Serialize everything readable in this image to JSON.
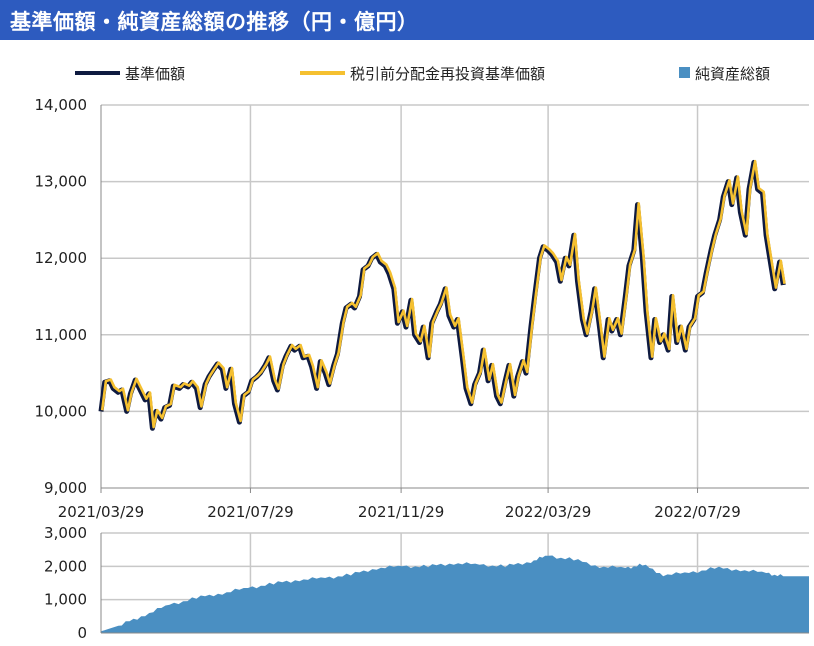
{
  "title": "基準価額・純資産総額の推移（円・億円）",
  "colors": {
    "header_bg": "#2d5bbf",
    "nav_line": "#0e1a40",
    "reinvested_line": "#f5c030",
    "net_assets_area": "#4a8fc2",
    "grid": "#c8c8c8",
    "axis": "#888888"
  },
  "chart_data": [
    {
      "type": "line",
      "legend": [
        {
          "name": "基準価額",
          "style": "line",
          "color": "#0e1a40"
        },
        {
          "name": "税引前分配金再投資基準価額",
          "style": "line",
          "color": "#f5c030"
        },
        {
          "name": "純資産総額",
          "style": "square",
          "color": "#4a8fc2"
        }
      ],
      "ylim": [
        9000,
        14000
      ],
      "yticks": [
        "9,000",
        "10,000",
        "11,000",
        "12,000",
        "13,000",
        "14,000"
      ],
      "ytick_values": [
        9000,
        10000,
        11000,
        12000,
        13000,
        14000
      ],
      "xlim": [
        "2021/03/29",
        "2022/10/28"
      ],
      "xticks": [
        "2021/03/29",
        "2021/07/29",
        "2021/11/29",
        "2022/03/29",
        "2022/07/29"
      ],
      "grid": true,
      "series": [
        {
          "name": "基準価額",
          "points": [
            [
              "2021/03/29",
              10000
            ],
            [
              "2021/04/01",
              10380
            ],
            [
              "2021/04/05",
              10400
            ],
            [
              "2021/04/08",
              10300
            ],
            [
              "2021/04/12",
              10250
            ],
            [
              "2021/04/15",
              10280
            ],
            [
              "2021/04/19",
              10000
            ],
            [
              "2021/04/22",
              10230
            ],
            [
              "2021/04/26",
              10410
            ],
            [
              "2021/04/30",
              10280
            ],
            [
              "2021/05/04",
              10150
            ],
            [
              "2021/05/07",
              10230
            ],
            [
              "2021/05/10",
              9780
            ],
            [
              "2021/05/13",
              10000
            ],
            [
              "2021/05/17",
              9900
            ],
            [
              "2021/05/20",
              10050
            ],
            [
              "2021/05/24",
              10080
            ],
            [
              "2021/05/27",
              10330
            ],
            [
              "2021/06/01",
              10300
            ],
            [
              "2021/06/04",
              10350
            ],
            [
              "2021/06/08",
              10320
            ],
            [
              "2021/06/11",
              10380
            ],
            [
              "2021/06/15",
              10300
            ],
            [
              "2021/06/18",
              10050
            ],
            [
              "2021/06/22",
              10350
            ],
            [
              "2021/06/25",
              10450
            ],
            [
              "2021/06/29",
              10550
            ],
            [
              "2021/07/02",
              10620
            ],
            [
              "2021/07/06",
              10550
            ],
            [
              "2021/07/09",
              10300
            ],
            [
              "2021/07/13",
              10550
            ],
            [
              "2021/07/16",
              10100
            ],
            [
              "2021/07/20",
              9860
            ],
            [
              "2021/07/23",
              10200
            ],
            [
              "2021/07/27",
              10250
            ],
            [
              "2021/07/30",
              10400
            ],
            [
              "2021/08/03",
              10450
            ],
            [
              "2021/08/06",
              10500
            ],
            [
              "2021/08/10",
              10600
            ],
            [
              "2021/08/13",
              10700
            ],
            [
              "2021/08/17",
              10400
            ],
            [
              "2021/08/20",
              10280
            ],
            [
              "2021/08/24",
              10600
            ],
            [
              "2021/08/27",
              10720
            ],
            [
              "2021/08/31",
              10850
            ],
            [
              "2021/09/03",
              10800
            ],
            [
              "2021/09/07",
              10850
            ],
            [
              "2021/09/10",
              10700
            ],
            [
              "2021/09/14",
              10720
            ],
            [
              "2021/09/17",
              10580
            ],
            [
              "2021/09/21",
              10300
            ],
            [
              "2021/09/24",
              10650
            ],
            [
              "2021/09/28",
              10500
            ],
            [
              "2021/10/01",
              10350
            ],
            [
              "2021/10/05",
              10600
            ],
            [
              "2021/10/08",
              10750
            ],
            [
              "2021/10/12",
              11150
            ],
            [
              "2021/10/15",
              11350
            ],
            [
              "2021/10/19",
              11400
            ],
            [
              "2021/10/22",
              11350
            ],
            [
              "2021/10/26",
              11500
            ],
            [
              "2021/10/29",
              11850
            ],
            [
              "2021/11/02",
              11900
            ],
            [
              "2021/11/05",
              12000
            ],
            [
              "2021/11/09",
              12050
            ],
            [
              "2021/11/12",
              11950
            ],
            [
              "2021/11/16",
              11900
            ],
            [
              "2021/11/19",
              11800
            ],
            [
              "2021/11/23",
              11600
            ],
            [
              "2021/11/26",
              11150
            ],
            [
              "2021/11/30",
              11300
            ],
            [
              "2021/12/03",
              11100
            ],
            [
              "2021/12/07",
              11450
            ],
            [
              "2021/12/10",
              11000
            ],
            [
              "2021/12/14",
              10900
            ],
            [
              "2021/12/17",
              11100
            ],
            [
              "2021/12/21",
              10700
            ],
            [
              "2021/12/24",
              11150
            ],
            [
              "2021/12/28",
              11300
            ],
            [
              "2021/12/31",
              11400
            ],
            [
              "2022/01/04",
              11600
            ],
            [
              "2022/01/07",
              11250
            ],
            [
              "2022/01/11",
              11100
            ],
            [
              "2022/01/14",
              11200
            ],
            [
              "2022/01/18",
              10700
            ],
            [
              "2022/01/21",
              10300
            ],
            [
              "2022/01/25",
              10100
            ],
            [
              "2022/01/28",
              10350
            ],
            [
              "2022/02/01",
              10500
            ],
            [
              "2022/02/04",
              10800
            ],
            [
              "2022/02/08",
              10400
            ],
            [
              "2022/02/11",
              10600
            ],
            [
              "2022/02/15",
              10200
            ],
            [
              "2022/02/18",
              10100
            ],
            [
              "2022/02/22",
              10400
            ],
            [
              "2022/02/25",
              10600
            ],
            [
              "2022/03/01",
              10200
            ],
            [
              "2022/03/04",
              10450
            ],
            [
              "2022/03/08",
              10650
            ],
            [
              "2022/03/11",
              10500
            ],
            [
              "2022/03/15",
              11100
            ],
            [
              "2022/03/18",
              11500
            ],
            [
              "2022/03/22",
              12000
            ],
            [
              "2022/03/25",
              12150
            ],
            [
              "2022/03/29",
              12100
            ],
            [
              "2022/04/01",
              12050
            ],
            [
              "2022/04/05",
              11950
            ],
            [
              "2022/04/08",
              11700
            ],
            [
              "2022/04/12",
              12000
            ],
            [
              "2022/04/15",
              11900
            ],
            [
              "2022/04/19",
              12300
            ],
            [
              "2022/04/22",
              11700
            ],
            [
              "2022/04/26",
              11200
            ],
            [
              "2022/04/29",
              11000
            ],
            [
              "2022/05/03",
              11300
            ],
            [
              "2022/05/06",
              11600
            ],
            [
              "2022/05/10",
              11100
            ],
            [
              "2022/05/13",
              10700
            ],
            [
              "2022/05/17",
              11200
            ],
            [
              "2022/05/20",
              11050
            ],
            [
              "2022/05/24",
              11200
            ],
            [
              "2022/05/27",
              11000
            ],
            [
              "2022/05/31",
              11500
            ],
            [
              "2022/06/03",
              11900
            ],
            [
              "2022/06/07",
              12100
            ],
            [
              "2022/06/10",
              12700
            ],
            [
              "2022/06/14",
              12000
            ],
            [
              "2022/06/17",
              11300
            ],
            [
              "2022/06/21",
              10700
            ],
            [
              "2022/06/24",
              11200
            ],
            [
              "2022/06/28",
              10900
            ],
            [
              "2022/07/01",
              11000
            ],
            [
              "2022/07/05",
              10800
            ],
            [
              "2022/07/08",
              11500
            ],
            [
              "2022/07/12",
              10900
            ],
            [
              "2022/07/15",
              11100
            ],
            [
              "2022/07/19",
              10800
            ],
            [
              "2022/07/22",
              11100
            ],
            [
              "2022/07/26",
              11200
            ],
            [
              "2022/07/29",
              11500
            ],
            [
              "2022/08/02",
              11550
            ],
            [
              "2022/08/05",
              11800
            ],
            [
              "2022/08/09",
              12100
            ],
            [
              "2022/08/12",
              12300
            ],
            [
              "2022/08/16",
              12500
            ],
            [
              "2022/08/19",
              12800
            ],
            [
              "2022/08/23",
              13000
            ],
            [
              "2022/08/26",
              12700
            ],
            [
              "2022/08/30",
              13050
            ],
            [
              "2022/09/02",
              12600
            ],
            [
              "2022/09/06",
              12300
            ],
            [
              "2022/09/09",
              12900
            ],
            [
              "2022/09/13",
              13250
            ],
            [
              "2022/09/16",
              12900
            ],
            [
              "2022/09/20",
              12850
            ],
            [
              "2022/09/23",
              12300
            ],
            [
              "2022/09/27",
              11900
            ],
            [
              "2022/09/30",
              11600
            ],
            [
              "2022/10/04",
              11950
            ],
            [
              "2022/10/07",
              11650
            ]
          ]
        },
        {
          "name": "税引前分配金再投資基準価額",
          "same_as": "基準価額"
        },
        {
          "name": "純資産総額",
          "type": "area",
          "ylim": [
            0,
            3000
          ],
          "yticks": [
            "0",
            "1,000",
            "2,000",
            "3,000"
          ],
          "ytick_values": [
            0,
            1000,
            2000,
            3000
          ],
          "points": [
            [
              "2021/03/29",
              50
            ],
            [
              "2021/04/15",
              250
            ],
            [
              "2021/05/04",
              550
            ],
            [
              "2021/05/24",
              850
            ],
            [
              "2021/06/15",
              1050
            ],
            [
              "2021/07/06",
              1200
            ],
            [
              "2021/07/27",
              1350
            ],
            [
              "2021/08/17",
              1480
            ],
            [
              "2021/09/07",
              1600
            ],
            [
              "2021/09/28",
              1650
            ],
            [
              "2021/10/19",
              1750
            ],
            [
              "2021/11/09",
              1950
            ],
            [
              "2021/11/30",
              2000
            ],
            [
              "2021/12/21",
              2000
            ],
            [
              "2022/01/11",
              2100
            ],
            [
              "2022/02/01",
              2050
            ],
            [
              "2022/02/22",
              2000
            ],
            [
              "2022/03/15",
              2150
            ],
            [
              "2022/03/29",
              2320
            ],
            [
              "2022/04/19",
              2200
            ],
            [
              "2022/05/10",
              2000
            ],
            [
              "2022/05/31",
              1950
            ],
            [
              "2022/06/14",
              2050
            ],
            [
              "2022/07/01",
              1750
            ],
            [
              "2022/07/22",
              1800
            ],
            [
              "2022/08/12",
              1950
            ],
            [
              "2022/09/02",
              1900
            ],
            [
              "2022/09/23",
              1800
            ],
            [
              "2022/10/07",
              1700
            ]
          ]
        }
      ]
    }
  ]
}
